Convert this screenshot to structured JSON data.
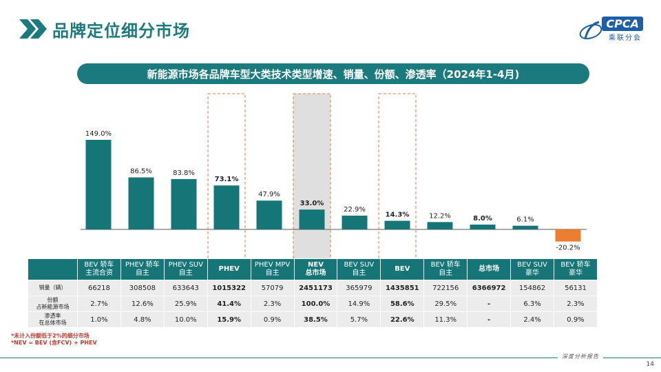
{
  "header": {
    "title": "品牌定位细分市场",
    "logo_text": "CPCA",
    "logo_sub": "乘联分会"
  },
  "subtitle": "新能源市场各品牌车型大类技术类型增速、销量、份额、渗透率（2024年1-4月)",
  "chart_data": {
    "type": "bar",
    "categories": [
      "BEV 轿车 主流合资",
      "PHEV 轿车 自主",
      "PHEV SUV 自主",
      "PHEV",
      "PHEV MPV 自主",
      "NEV 总市场",
      "BEV SUV 自主",
      "BEV",
      "BEV 轿车 自主",
      "总市场",
      "BEV SUV 豪华",
      "BEV 轿车 豪华"
    ],
    "values": [
      149.0,
      86.5,
      83.8,
      73.1,
      47.9,
      33.0,
      22.9,
      14.3,
      12.2,
      8.0,
      6.1,
      -20.2
    ],
    "value_labels": [
      "149.0%",
      "86.5%",
      "83.8%",
      "73.1%",
      "47.9%",
      "33.0%",
      "22.9%",
      "14.3%",
      "12.2%",
      "8.0%",
      "6.1%",
      "-20.2%"
    ],
    "bold_labels": [
      false,
      false,
      false,
      true,
      false,
      true,
      false,
      true,
      false,
      true,
      false,
      false
    ],
    "highlighted": [
      3,
      5,
      7
    ],
    "colors": {
      "positive": "#157577",
      "negative": "#ed7d31",
      "highlight_border": "#e8793a",
      "shaded_bg": "#d9d9d9"
    },
    "ylim": [
      -25,
      160
    ],
    "grid": false
  },
  "table": {
    "headers": [
      {
        "line1": "BEV 轿车",
        "line2": "主流合资",
        "bold": false
      },
      {
        "line1": "PHEV 轿车",
        "line2": "自主",
        "bold": false
      },
      {
        "line1": "PHEV SUV",
        "line2": "自主",
        "bold": false
      },
      {
        "line1": "PHEV",
        "line2": "",
        "bold": true
      },
      {
        "line1": "PHEV MPV",
        "line2": "自主",
        "bold": false
      },
      {
        "line1": "NEV",
        "line2": "总市场",
        "bold": true
      },
      {
        "line1": "BEV SUV",
        "line2": "自主",
        "bold": false
      },
      {
        "line1": "BEV",
        "line2": "",
        "bold": true
      },
      {
        "line1": "BEV 轿车",
        "line2": "自主",
        "bold": false
      },
      {
        "line1": "总市场",
        "line2": "",
        "bold": true
      },
      {
        "line1": "BEV SUV",
        "line2": "豪华",
        "bold": false
      },
      {
        "line1": "BEV 轿车",
        "line2": "豪华",
        "bold": false
      }
    ],
    "rows": [
      {
        "label1": "销量（辆）",
        "label2": "",
        "values": [
          "66218",
          "308508",
          "633643",
          "1015322",
          "57079",
          "2451173",
          "365979",
          "1435851",
          "722156",
          "6366972",
          "154862",
          "56131"
        ]
      },
      {
        "label1": "份额",
        "label2": "占新能源市场",
        "values": [
          "2.7%",
          "12.6%",
          "25.9%",
          "41.4%",
          "2.3%",
          "100.0%",
          "14.9%",
          "58.6%",
          "29.5%",
          "-",
          "6.3%",
          "2.3%"
        ]
      },
      {
        "label1": "渗透率",
        "label2": "在总体市场",
        "values": [
          "1.0%",
          "4.8%",
          "10.0%",
          "15.9%",
          "0.9%",
          "38.5%",
          "5.7%",
          "22.6%",
          "11.3%",
          "-",
          "2.4%",
          "0.9%"
        ]
      }
    ],
    "bold_cols": [
      3,
      5,
      7,
      9
    ]
  },
  "notes": {
    "line1": "*未计入份额低于2%的细分市场",
    "line2": "*NEV = BEV (含FCV) + PHEV"
  },
  "footer": {
    "tag": "深度分析报告",
    "page": "14"
  }
}
